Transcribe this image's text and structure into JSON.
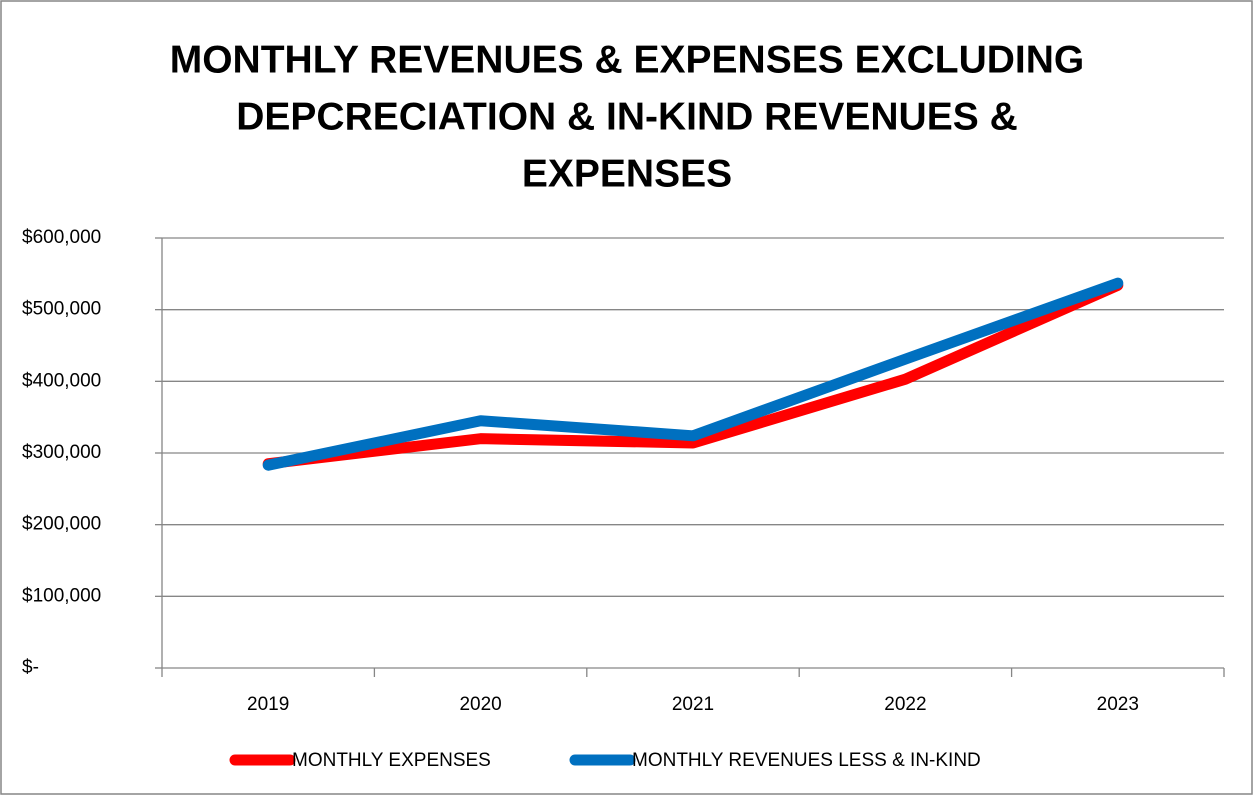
{
  "chart_data": {
    "type": "line",
    "title": [
      "MONTHLY REVENUES & EXPENSES EXCLUDING",
      "DEPCRECIATION & IN-KIND REVENUES &",
      "EXPENSES"
    ],
    "categories": [
      "2019",
      "2020",
      "2021",
      "2022",
      "2023"
    ],
    "series": [
      {
        "name": "MONTHLY EXPENSES",
        "color": "#ff0000",
        "values": [
          285000,
          320000,
          314000,
          403000,
          534000
        ]
      },
      {
        "name": "MONTHLY REVENUES LESS & IN-KIND",
        "color": "#0070c0",
        "values": [
          283000,
          345000,
          324000,
          431000,
          537000
        ]
      }
    ],
    "ylim": [
      0,
      600000
    ],
    "yticks": [
      {
        "value": 0,
        "label": "$-"
      },
      {
        "value": 100000,
        "label": "$100,000"
      },
      {
        "value": 200000,
        "label": "$200,000"
      },
      {
        "value": 300000,
        "label": "$300,000"
      },
      {
        "value": 400000,
        "label": "$400,000"
      },
      {
        "value": 500000,
        "label": "$500,000"
      },
      {
        "value": 600000,
        "label": "$600,000"
      }
    ],
    "grid": true,
    "legend": "bottom"
  }
}
